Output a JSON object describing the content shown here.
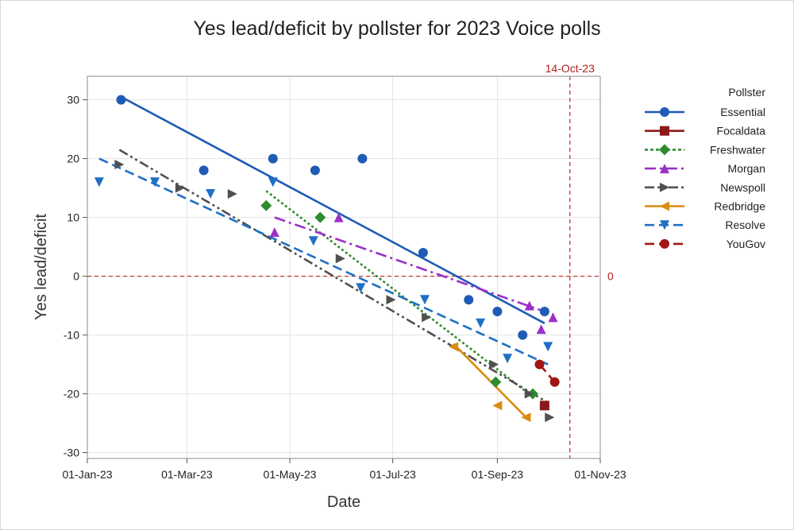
{
  "chart_data": {
    "type": "scatter",
    "title": "Yes lead/deficit by pollster for 2023 Voice polls",
    "xlabel": "Date",
    "ylabel": "Yes lead/deficit",
    "x_ticks": [
      "01-Jan-23",
      "01-Mar-23",
      "01-May-23",
      "01-Jul-23",
      "01-Sep-23",
      "01-Nov-23"
    ],
    "x_tick_dates": [
      "2023-01-01",
      "2023-03-01",
      "2023-05-01",
      "2023-07-01",
      "2023-09-01",
      "2023-11-01"
    ],
    "y_ticks": [
      30,
      20,
      10,
      0,
      -10,
      -20,
      -30
    ],
    "xlim": [
      "2023-01-01",
      "2023-11-01"
    ],
    "ylim": [
      -31,
      34
    ],
    "grid": true,
    "legend_title": "Pollster",
    "legend_position": "right",
    "reference_lines": [
      {
        "axis": "x",
        "value": "2023-10-14",
        "label": "14-Oct-23",
        "color": "#c0392b"
      },
      {
        "axis": "y",
        "value": 0,
        "label": "0",
        "color": "#c0392b"
      }
    ],
    "series": [
      {
        "name": "Essential",
        "color": "#1f5bb5",
        "marker": "circle",
        "dash": "solid",
        "points": [
          [
            "2023-01-21",
            30
          ],
          [
            "2023-03-11",
            18
          ],
          [
            "2023-04-21",
            20
          ],
          [
            "2023-05-16",
            18
          ],
          [
            "2023-06-13",
            20
          ],
          [
            "2023-07-19",
            4
          ],
          [
            "2023-08-15",
            -4
          ],
          [
            "2023-09-01",
            -6
          ],
          [
            "2023-09-16",
            -10
          ],
          [
            "2023-09-29",
            -6
          ]
        ],
        "trend": [
          [
            "2023-01-21",
            30.5
          ],
          [
            "2023-09-29",
            -8
          ]
        ]
      },
      {
        "name": "Focaldata",
        "color": "#8b1a1a",
        "marker": "square",
        "dash": "solid",
        "points": [
          [
            "2023-09-29",
            -22
          ]
        ],
        "trend": []
      },
      {
        "name": "Freshwater",
        "color": "#2e8b2e",
        "marker": "diamond",
        "dash": "dot",
        "points": [
          [
            "2023-04-17",
            12
          ],
          [
            "2023-05-19",
            10
          ],
          [
            "2023-08-31",
            -18
          ],
          [
            "2023-09-22",
            -20
          ]
        ],
        "trend": [
          [
            "2023-04-17",
            14.5
          ],
          [
            "2023-09-22",
            -20.5
          ]
        ]
      },
      {
        "name": "Morgan",
        "color": "#9b30c8",
        "marker": "triangle-up",
        "dash": "dashdot",
        "points": [
          [
            "2023-04-22",
            7.5
          ],
          [
            "2023-05-30",
            10
          ],
          [
            "2023-09-20",
            -5
          ],
          [
            "2023-09-27",
            -9
          ],
          [
            "2023-10-04",
            -7
          ]
        ],
        "trend": [
          [
            "2023-04-22",
            10
          ],
          [
            "2023-10-04",
            -6.5
          ]
        ]
      },
      {
        "name": "Newspoll",
        "color": "#505050",
        "marker": "triangle-right",
        "dash": "dashdotdot",
        "points": [
          [
            "2023-01-20",
            19
          ],
          [
            "2023-02-25",
            15
          ],
          [
            "2023-03-28",
            14
          ],
          [
            "2023-05-31",
            3
          ],
          [
            "2023-06-30",
            -4
          ],
          [
            "2023-07-21",
            -7
          ],
          [
            "2023-08-30",
            -15
          ],
          [
            "2023-09-20",
            -20
          ],
          [
            "2023-10-02",
            -24
          ]
        ],
        "trend": [
          [
            "2023-01-20",
            21.5
          ],
          [
            "2023-10-01",
            -21.5
          ]
        ]
      },
      {
        "name": "Redbridge",
        "color": "#d98c0f",
        "marker": "triangle-left",
        "dash": "solid",
        "points": [
          [
            "2023-08-06",
            -12
          ],
          [
            "2023-09-01",
            -22
          ],
          [
            "2023-09-18",
            -24
          ]
        ],
        "trend": [
          [
            "2023-08-06",
            -11.5
          ],
          [
            "2023-09-18",
            -24
          ]
        ]
      },
      {
        "name": "Resolve",
        "color": "#1f6fc5",
        "marker": "triangle-down",
        "dash": "dash",
        "points": [
          [
            "2023-01-08",
            16
          ],
          [
            "2023-02-10",
            16
          ],
          [
            "2023-03-15",
            14
          ],
          [
            "2023-04-21",
            16
          ],
          [
            "2023-05-15",
            6
          ],
          [
            "2023-06-12",
            -2
          ],
          [
            "2023-07-20",
            -4
          ],
          [
            "2023-08-22",
            -8
          ],
          [
            "2023-09-07",
            -14
          ],
          [
            "2023-10-01",
            -12
          ]
        ],
        "trend": [
          [
            "2023-01-08",
            20
          ],
          [
            "2023-10-01",
            -15
          ]
        ]
      },
      {
        "name": "YouGov",
        "color": "#a31515",
        "marker": "circle",
        "dash": "dash",
        "points": [
          [
            "2023-09-26",
            -15
          ],
          [
            "2023-10-05",
            -18
          ]
        ],
        "trend": [
          [
            "2023-09-26",
            -15
          ],
          [
            "2023-10-05",
            -18
          ]
        ]
      }
    ]
  }
}
